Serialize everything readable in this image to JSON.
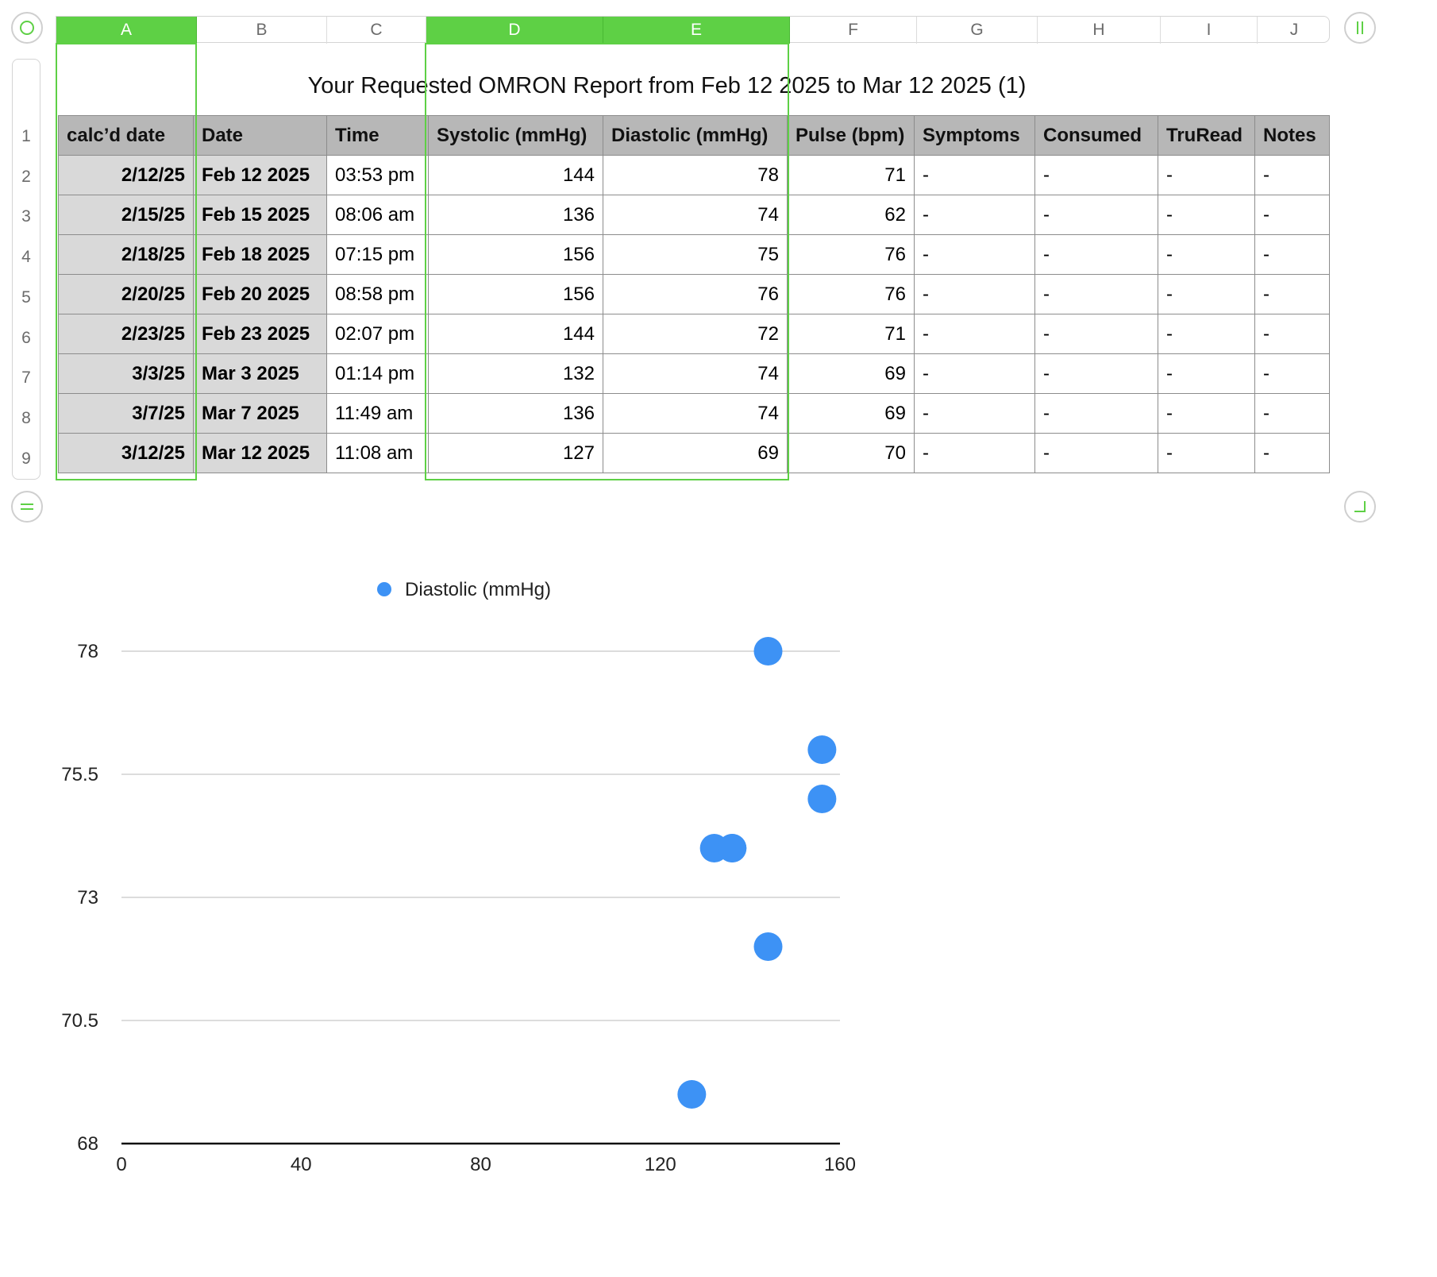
{
  "sheet": {
    "title": "Your Requested OMRON Report from Feb 12 2025 to Mar 12 2025 (1)",
    "columns": [
      "A",
      "B",
      "C",
      "D",
      "E",
      "F",
      "G",
      "H",
      "I",
      "J"
    ],
    "selected_columns": [
      "A",
      "D",
      "E"
    ],
    "rows": [
      "1",
      "2",
      "3",
      "4",
      "5",
      "6",
      "7",
      "8",
      "9"
    ]
  },
  "table": {
    "headers": [
      "calc’d date",
      "Date",
      "Time",
      "Systolic (mmHg)",
      "Diastolic (mmHg)",
      "Pulse (bpm)",
      "Symptoms",
      "Consumed",
      "TruRead",
      "Notes"
    ],
    "rows": [
      [
        "2/12/25",
        "Feb 12 2025",
        "03:53 pm",
        "144",
        "78",
        "71",
        "-",
        "-",
        "-",
        "-"
      ],
      [
        "2/15/25",
        "Feb 15 2025",
        "08:06 am",
        "136",
        "74",
        "62",
        "-",
        "-",
        "-",
        "-"
      ],
      [
        "2/18/25",
        "Feb 18 2025",
        "07:15 pm",
        "156",
        "75",
        "76",
        "-",
        "-",
        "-",
        "-"
      ],
      [
        "2/20/25",
        "Feb 20 2025",
        "08:58 pm",
        "156",
        "76",
        "76",
        "-",
        "-",
        "-",
        "-"
      ],
      [
        "2/23/25",
        "Feb 23 2025",
        "02:07 pm",
        "144",
        "72",
        "71",
        "-",
        "-",
        "-",
        "-"
      ],
      [
        "3/3/25",
        "Mar 3 2025",
        "01:14 pm",
        "132",
        "74",
        "69",
        "-",
        "-",
        "-",
        "-"
      ],
      [
        "3/7/25",
        "Mar 7 2025",
        "11:49 am",
        "136",
        "74",
        "69",
        "-",
        "-",
        "-",
        "-"
      ],
      [
        "3/12/25",
        "Mar 12 2025",
        "11:08 am",
        "127",
        "69",
        "70",
        "-",
        "-",
        "-",
        "-"
      ]
    ]
  },
  "colors": {
    "selection": "#5ed045",
    "header_fill": "#b7b7b7",
    "bold_cell_fill": "#d9d9d9",
    "point": "#3d92f5"
  },
  "icons": {
    "top_left_handle": "circle-icon",
    "top_right_handle": "pause-icon",
    "bottom_left_handle": "equals-icon",
    "bottom_right_handle": "corner-resize-icon"
  },
  "chart_data": {
    "type": "scatter",
    "legend": [
      "Diastolic (mmHg)"
    ],
    "legend_position": "top-left",
    "series": [
      {
        "name": "Diastolic (mmHg)",
        "points": [
          [
            144,
            78
          ],
          [
            136,
            74
          ],
          [
            156,
            75
          ],
          [
            156,
            76
          ],
          [
            144,
            72
          ],
          [
            132,
            74
          ],
          [
            136,
            74
          ],
          [
            127,
            69
          ]
        ]
      }
    ],
    "xlim": [
      0,
      160
    ],
    "ylim": [
      68,
      78
    ],
    "x_ticks": [
      "0",
      "40",
      "80",
      "120",
      "160"
    ],
    "x_tick_values": [
      0,
      40,
      80,
      120,
      160
    ],
    "y_ticks": [
      "78",
      "75.5",
      "73",
      "70.5",
      "68"
    ],
    "y_tick_values": [
      78,
      75.5,
      73,
      70.5,
      68
    ],
    "grid": "horizontal"
  }
}
